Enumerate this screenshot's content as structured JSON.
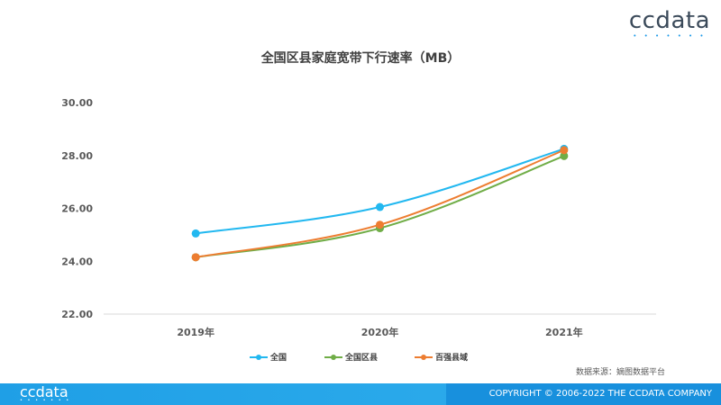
{
  "logo": {
    "text": "ccdata",
    "dots": "• • • • • • •"
  },
  "source": "数据来源：嫡图数据平台",
  "footer": {
    "logo": "ccdata",
    "dots": "• • • • • • •",
    "copyright": "COPYRIGHT © 2006-2022 THE CCDATA COMPANY"
  },
  "chart_data": {
    "type": "line",
    "title": "全国区县家庭宽带下行速率（MB）",
    "categories": [
      "2019年",
      "2020年",
      "2021年"
    ],
    "ylim": [
      22,
      30
    ],
    "yticks": [
      "22.00",
      "24.00",
      "26.00",
      "28.00",
      "30.00"
    ],
    "grid": false,
    "legend_position": "bottom",
    "series": [
      {
        "name": "全国",
        "values": [
          25.05,
          26.05,
          28.25
        ],
        "color": "#22b8f0"
      },
      {
        "name": "全国区县",
        "values": [
          24.15,
          25.25,
          27.98
        ],
        "color": "#70ad47"
      },
      {
        "name": "百强县域",
        "values": [
          24.15,
          25.38,
          28.2
        ],
        "color": "#ed7d31"
      }
    ]
  }
}
